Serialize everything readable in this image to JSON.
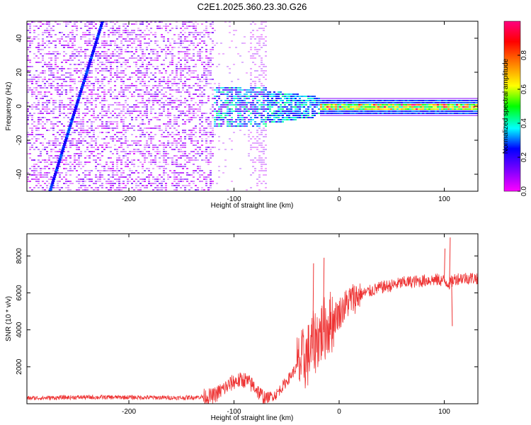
{
  "title": "C2E1.2025.360.23.30.G26",
  "chart_data": [
    {
      "type": "heatmap",
      "name": "spectrogram",
      "xlabel": "Height of straight line (km)",
      "ylabel": "Frequency (Hz)",
      "xlim": [
        -297,
        132
      ],
      "ylim": [
        -50,
        50
      ],
      "xticks": [
        -200,
        -100,
        0,
        100
      ],
      "yticks": [
        -40,
        -20,
        0,
        20,
        40
      ],
      "colorbar": {
        "label": "Normalized spectral amplitude",
        "range": [
          0.0,
          1.0
        ],
        "ticks": [
          0.0,
          0.2,
          0.4,
          0.6,
          0.8
        ],
        "colormap": [
          "#ff00ff",
          "#8000ff",
          "#0000ff",
          "#00ffff",
          "#00ff00",
          "#ffff00",
          "#ff8000",
          "#ff0000",
          "#ff0080"
        ]
      },
      "regions": [
        {
          "x_range": [
            -297,
            -120
          ],
          "description_value": "broadband noise",
          "amplitude": [
            0.03,
            0.15
          ]
        },
        {
          "x_range": [
            -130,
            -20
          ],
          "center_freq": 0,
          "amplitude": [
            0.2,
            0.45
          ]
        },
        {
          "x_range": [
            -20,
            132
          ],
          "center_freq": 0,
          "amplitude": [
            0.4,
            1.0
          ]
        }
      ],
      "streak": {
        "x_start": -275,
        "x_end": -225,
        "freq_start": -50,
        "freq_end": 50
      }
    },
    {
      "type": "line",
      "name": "snr",
      "xlabel": "Height of straight line (km)",
      "ylabel": "SNR (10 * v/v)",
      "xlim": [
        -297,
        132
      ],
      "ylim": [
        0,
        9200
      ],
      "xticks": [
        -200,
        -100,
        0,
        100
      ],
      "yticks": [
        2000,
        4000,
        6000,
        8000
      ],
      "color": "#ee3333",
      "series": [
        {
          "name": "SNR",
          "x": [
            -297,
            -250,
            -200,
            -150,
            -120,
            -110,
            -100,
            -90,
            -80,
            -75,
            -70,
            -60,
            -50,
            -40,
            -30,
            -25,
            -20,
            -15,
            -10,
            -5,
            0,
            10,
            20,
            30,
            40,
            50,
            60,
            70,
            80,
            85,
            90,
            95,
            100,
            105,
            110,
            115,
            120,
            132
          ],
          "y": [
            300,
            350,
            350,
            320,
            400,
            800,
            1200,
            1300,
            900,
            500,
            300,
            500,
            1200,
            2000,
            2600,
            3200,
            3600,
            4000,
            4300,
            4600,
            4900,
            5600,
            5900,
            6100,
            6300,
            6400,
            6550,
            6600,
            6650,
            6700,
            6700,
            6700,
            6650,
            6500,
            6750,
            6800,
            6800,
            6800
          ],
          "spikes": [
            {
              "x": -25,
              "y": 7600
            },
            {
              "x": -15,
              "y": 7900
            },
            {
              "x": 100,
              "y": 8400
            },
            {
              "x": 105,
              "y": 9000
            },
            {
              "x": 107,
              "y": 4200
            }
          ]
        }
      ]
    }
  ]
}
